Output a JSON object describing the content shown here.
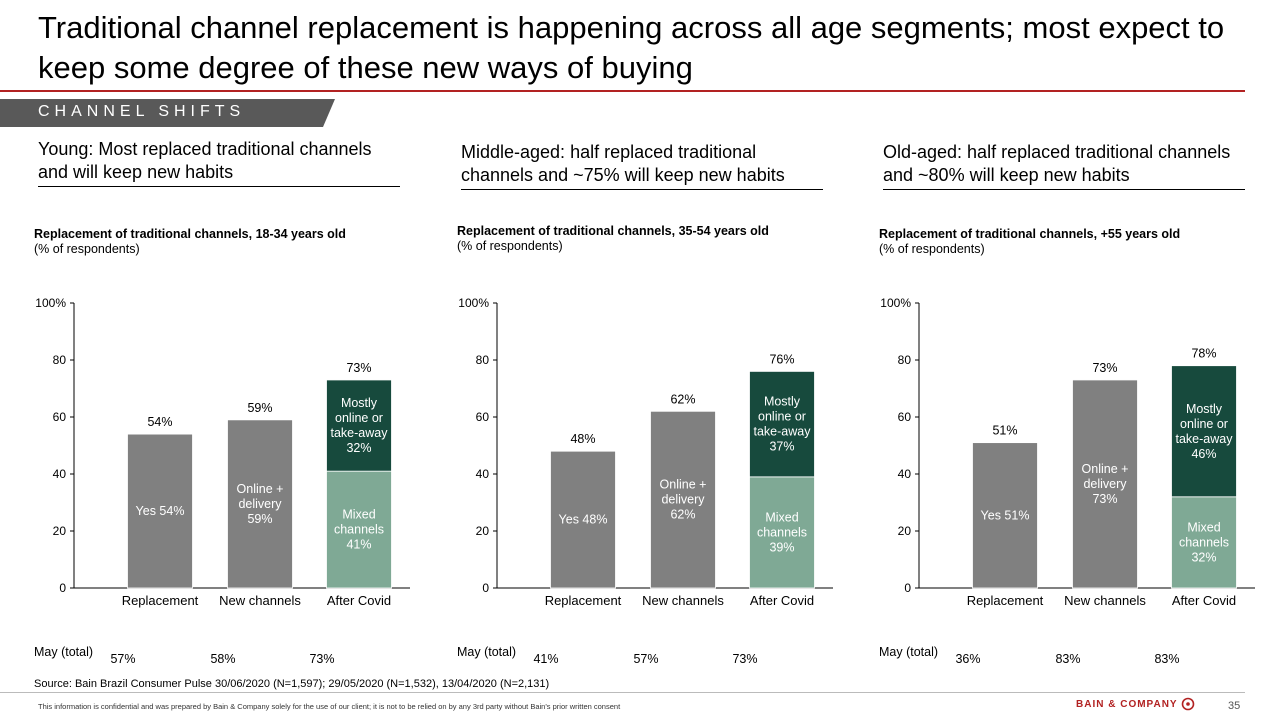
{
  "title": "Traditional channel replacement is happening across all age segments; most expect to keep some degree of these new ways of buying",
  "section_tag": "CHANNEL SHIFTS",
  "colors": {
    "accent": "#b22222",
    "tag_bg": "#595959",
    "gray_bar": "#808080",
    "dark_green": "#174a3d",
    "light_green": "#7fa995"
  },
  "panels": [
    {
      "heading": "Young: Most replaced traditional channels and will keep new habits",
      "chart_title": "Replacement of traditional channels, 18-34 years old",
      "chart_subtitle": "(% of respondents)",
      "may_label": "May (total)",
      "may_values": [
        "57%",
        "58%",
        "73%"
      ]
    },
    {
      "heading": "Middle-aged: half replaced traditional channels and ~75% will keep new habits",
      "chart_title": "Replacement of traditional channels, 35-54 years old",
      "chart_subtitle": "(% of respondents)",
      "may_label": "May (total)",
      "may_values": [
        "41%",
        "57%",
        "73%"
      ]
    },
    {
      "heading": "Old-aged: half replaced traditional channels and ~80% will keep new habits",
      "chart_title": "Replacement of traditional channels, +55 years old",
      "chart_subtitle": "(% of respondents)",
      "may_label": "May (total)",
      "may_values": [
        "36%",
        "83%",
        "83%"
      ]
    }
  ],
  "chart_data": [
    {
      "type": "bar",
      "categories": [
        "Replacement",
        "New channels",
        "After Covid"
      ],
      "ylim": [
        0,
        100
      ],
      "yticks": [
        "0",
        "20",
        "40",
        "60",
        "80",
        "100%"
      ],
      "grid": false,
      "bars": [
        {
          "total": 54,
          "total_label": "54%",
          "segments": [
            {
              "value": 54,
              "color": "gray",
              "label": [
                "Yes 54%"
              ]
            }
          ]
        },
        {
          "total": 59,
          "total_label": "59%",
          "segments": [
            {
              "value": 59,
              "color": "gray",
              "label": [
                "Online +",
                "delivery",
                "59%"
              ]
            }
          ]
        },
        {
          "total": 73,
          "total_label": "73%",
          "segments": [
            {
              "value": 41,
              "color": "light",
              "label": [
                "Mixed",
                "channels",
                "41%"
              ]
            },
            {
              "value": 32,
              "color": "dark",
              "label": [
                "Mostly",
                "online or",
                "take-away",
                "32%"
              ]
            }
          ]
        }
      ]
    },
    {
      "type": "bar",
      "categories": [
        "Replacement",
        "New channels",
        "After Covid"
      ],
      "ylim": [
        0,
        100
      ],
      "yticks": [
        "0",
        "20",
        "40",
        "60",
        "80",
        "100%"
      ],
      "grid": false,
      "bars": [
        {
          "total": 48,
          "total_label": "48%",
          "segments": [
            {
              "value": 48,
              "color": "gray",
              "label": [
                "Yes 48%"
              ]
            }
          ]
        },
        {
          "total": 62,
          "total_label": "62%",
          "segments": [
            {
              "value": 62,
              "color": "gray",
              "label": [
                "Online +",
                "delivery",
                "62%"
              ]
            }
          ]
        },
        {
          "total": 76,
          "total_label": "76%",
          "segments": [
            {
              "value": 39,
              "color": "light",
              "label": [
                "Mixed",
                "channels",
                "39%"
              ]
            },
            {
              "value": 37,
              "color": "dark",
              "label": [
                "Mostly",
                "online or",
                "take-away",
                "37%"
              ]
            }
          ]
        }
      ]
    },
    {
      "type": "bar",
      "categories": [
        "Replacement",
        "New channels",
        "After Covid"
      ],
      "ylim": [
        0,
        100
      ],
      "yticks": [
        "0",
        "20",
        "40",
        "60",
        "80",
        "100%"
      ],
      "grid": false,
      "bars": [
        {
          "total": 51,
          "total_label": "51%",
          "segments": [
            {
              "value": 51,
              "color": "gray",
              "label": [
                "Yes 51%"
              ]
            }
          ]
        },
        {
          "total": 73,
          "total_label": "73%",
          "segments": [
            {
              "value": 73,
              "color": "gray",
              "label": [
                "Online +",
                "delivery",
                "73%"
              ]
            }
          ]
        },
        {
          "total": 78,
          "total_label": "78%",
          "segments": [
            {
              "value": 32,
              "color": "light",
              "label": [
                "Mixed",
                "channels",
                "32%"
              ]
            },
            {
              "value": 46,
              "color": "dark",
              "label": [
                "Mostly",
                "online or",
                "take-away",
                "46%"
              ]
            }
          ]
        }
      ]
    }
  ],
  "source": "Source: Bain Brazil Consumer Pulse 30/06/2020 (N=1,597); 29/05/2020 (N=1,532), 13/04/2020 (N=2,131)",
  "confidentiality": "This information is confidential and was prepared by Bain & Company solely for the use of our client; it is not to be relied on by any 3rd party without Bain's prior written consent",
  "logo_text": "BAIN & COMPANY",
  "page_number": "35"
}
